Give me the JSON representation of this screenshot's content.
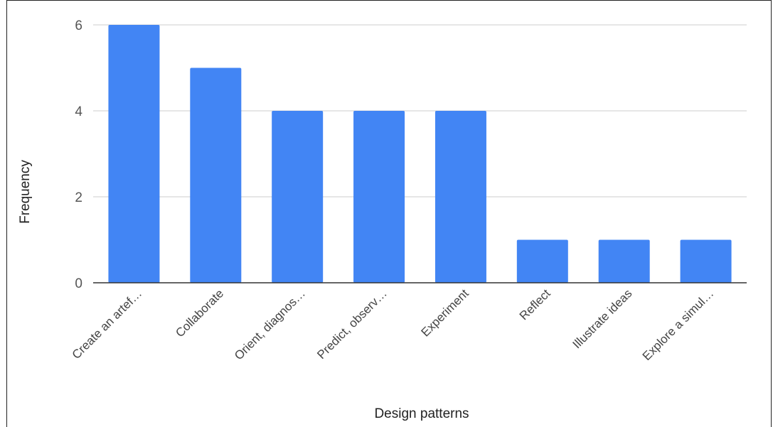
{
  "chart_data": {
    "type": "bar",
    "categories": [
      "Create an artef…",
      "Collaborate",
      "Orient, diagnos…",
      "Predict, observ…",
      "Experiment",
      "Reflect",
      "Illustrate ideas",
      "Explore a simul…"
    ],
    "values": [
      6,
      5,
      4,
      4,
      4,
      1,
      1,
      1
    ],
    "xlabel": "Design patterns",
    "ylabel": "Frequency",
    "ylim": [
      0,
      6
    ],
    "yticks": [
      0,
      2,
      4,
      6
    ],
    "grid": true,
    "bar_color": "#4285f4",
    "gridline_color": "#cccccc",
    "baseline_color": "#333333"
  }
}
